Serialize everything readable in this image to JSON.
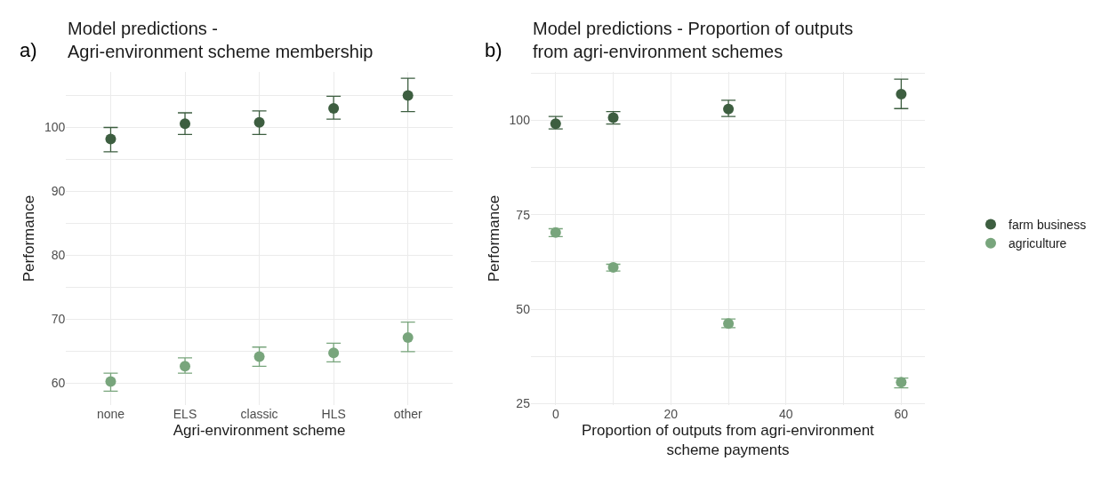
{
  "chart_data": [
    {
      "type": "scatter",
      "title": "Model predictions -\nAgri-environment scheme membership",
      "subtitle": "a)",
      "xlabel": "Agri-environment scheme",
      "ylabel": "Performance",
      "categories": [
        "none",
        "ELS",
        "classic",
        "HLS",
        "other"
      ],
      "series": [
        {
          "color": "#3d5e40",
          "values": [
            98.2,
            100.6,
            100.8,
            103.0,
            105.0
          ],
          "errors": [
            [
              96.2,
              100.0
            ],
            [
              98.9,
              102.3
            ],
            [
              98.9,
              102.6
            ],
            [
              101.3,
              104.9
            ],
            [
              102.5,
              107.7
            ]
          ]
        },
        {
          "color": "#78a57c",
          "values": [
            60.2,
            62.6,
            64.1,
            64.7,
            67.1
          ],
          "errors": [
            [
              58.7,
              61.5
            ],
            [
              61.5,
              63.9
            ],
            [
              62.6,
              65.6
            ],
            [
              63.3,
              66.2
            ],
            [
              64.9,
              69.5
            ]
          ]
        }
      ],
      "ylim": [
        56.5,
        108.7
      ],
      "yticks": [
        60,
        70,
        80,
        90,
        100
      ],
      "grid": true,
      "marker": "circle",
      "legend": false
    },
    {
      "type": "scatter",
      "title": "Model predictions - Proportion of outputs\nfrom agri-environment schemes",
      "subtitle": "b)",
      "xlabel": "Proportion of outputs from agri-environment\nscheme payments",
      "ylabel": "Performance",
      "x": [
        0,
        10,
        30,
        60
      ],
      "series": [
        {
          "name": "farm business",
          "color": "#3d5e40",
          "values": [
            99.1,
            100.7,
            103.0,
            106.9
          ],
          "errors": [
            [
              97.7,
              101.0
            ],
            [
              99.0,
              102.3
            ],
            [
              101.0,
              105.3
            ],
            [
              103.1,
              110.9
            ]
          ]
        },
        {
          "name": "agriculture",
          "color": "#78a57c",
          "values": [
            70.3,
            61.1,
            46.2,
            30.7
          ],
          "errors": [
            [
              69.2,
              71.3
            ],
            [
              60.1,
              61.9
            ],
            [
              45.1,
              47.4
            ],
            [
              29.2,
              31.8
            ]
          ]
        }
      ],
      "xlim": [
        -4.3,
        64.1
      ],
      "xticks": [
        0,
        20,
        40,
        60
      ],
      "ylim": [
        24.6,
        112.8
      ],
      "yticks": [
        25,
        50,
        75,
        100
      ],
      "grid": true,
      "marker": "circle",
      "legend": "right"
    }
  ]
}
